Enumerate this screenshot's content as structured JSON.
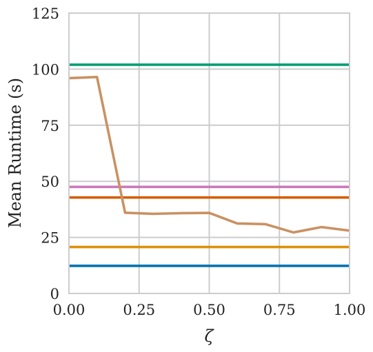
{
  "chart_data": {
    "type": "line",
    "xlabel": "ζ",
    "ylabel": "Mean Runtime (s)",
    "xlim": [
      0.0,
      1.0
    ],
    "ylim": [
      0,
      125
    ],
    "x_ticks": [
      "0.00",
      "0.25",
      "0.50",
      "0.75",
      "1.00"
    ],
    "y_ticks": [
      "0",
      "25",
      "50",
      "75",
      "100",
      "125"
    ],
    "grid": true,
    "legend": "none",
    "series": [
      {
        "color": "#029e73",
        "constant": 102
      },
      {
        "color": "#cc78bc",
        "constant": 47.5
      },
      {
        "color": "#d55e00",
        "constant": 42.8
      },
      {
        "color": "#de8f05",
        "constant": 20.7
      },
      {
        "color": "#0173b2",
        "constant": 12.3
      },
      {
        "color": "#ca9161",
        "x": [
          0.0,
          0.1,
          0.2,
          0.3,
          0.4,
          0.5,
          0.6,
          0.7,
          0.8,
          0.9,
          1.0
        ],
        "y": [
          96.0,
          96.5,
          36.0,
          35.5,
          35.8,
          35.9,
          31.2,
          30.9,
          27.2,
          29.6,
          28.0
        ]
      }
    ]
  }
}
